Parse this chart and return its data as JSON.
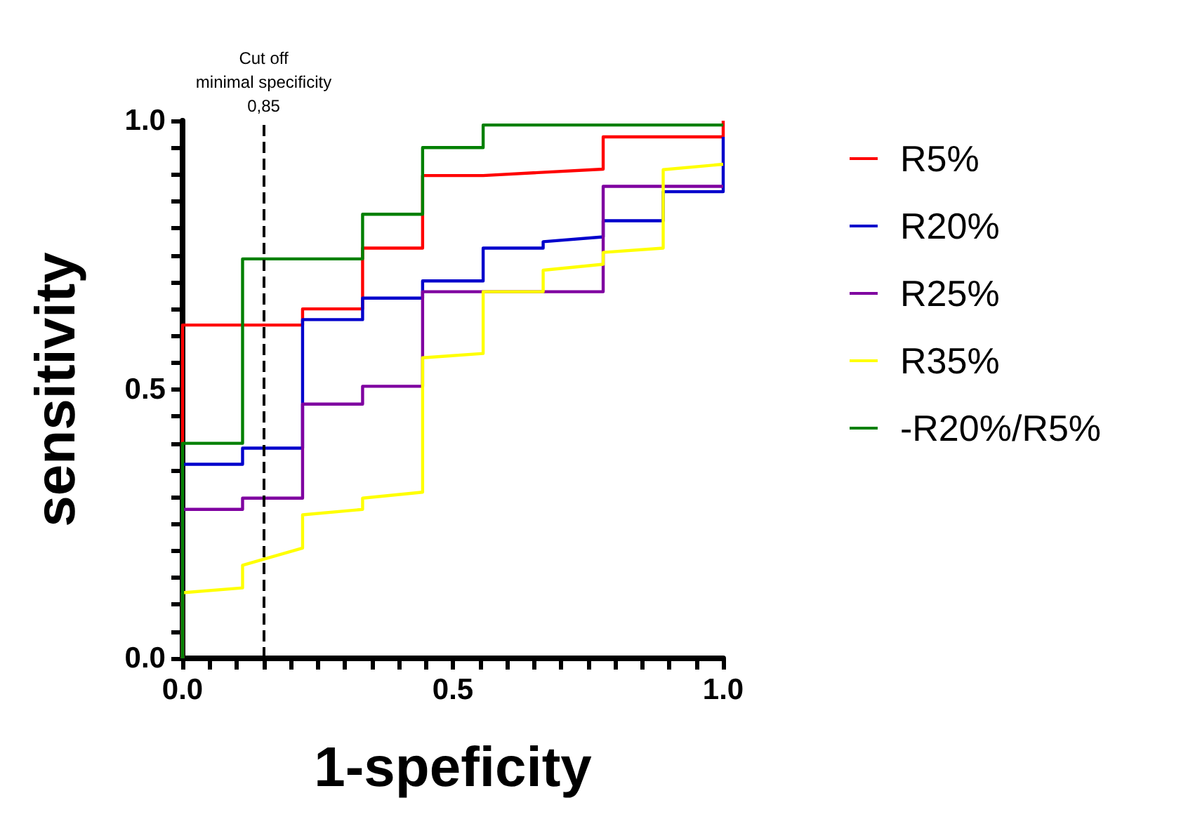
{
  "chart_data": {
    "type": "line",
    "xlabel": "1-speficity",
    "ylabel": "sensitivity",
    "xlim": [
      0,
      1
    ],
    "ylim": [
      0,
      1
    ],
    "xticks": [
      {
        "value": 0,
        "label": "0.0"
      },
      {
        "value": 0.05,
        "label": null
      },
      {
        "value": 0.1,
        "label": null
      },
      {
        "value": 0.15,
        "label": null
      },
      {
        "value": 0.2,
        "label": null
      },
      {
        "value": 0.25,
        "label": null
      },
      {
        "value": 0.3,
        "label": null
      },
      {
        "value": 0.35,
        "label": null
      },
      {
        "value": 0.4,
        "label": null
      },
      {
        "value": 0.45,
        "label": null
      },
      {
        "value": 0.5,
        "label": "0.5"
      },
      {
        "value": 0.55,
        "label": null
      },
      {
        "value": 0.6,
        "label": null
      },
      {
        "value": 0.65,
        "label": null
      },
      {
        "value": 0.7,
        "label": null
      },
      {
        "value": 0.75,
        "label": null
      },
      {
        "value": 0.8,
        "label": null
      },
      {
        "value": 0.85,
        "label": null
      },
      {
        "value": 0.9,
        "label": null
      },
      {
        "value": 0.95,
        "label": null
      },
      {
        "value": 1,
        "label": "1.0"
      }
    ],
    "yticks": [
      {
        "value": 0,
        "label": "0.0"
      },
      {
        "value": 0.05,
        "label": null
      },
      {
        "value": 0.1,
        "label": null
      },
      {
        "value": 0.15,
        "label": null
      },
      {
        "value": 0.2,
        "label": null
      },
      {
        "value": 0.25,
        "label": null
      },
      {
        "value": 0.3,
        "label": null
      },
      {
        "value": 0.35,
        "label": null
      },
      {
        "value": 0.4,
        "label": null
      },
      {
        "value": 0.45,
        "label": null
      },
      {
        "value": 0.5,
        "label": "0.5"
      },
      {
        "value": 0.55,
        "label": null
      },
      {
        "value": 0.6,
        "label": null
      },
      {
        "value": 0.65,
        "label": null
      },
      {
        "value": 0.7,
        "label": null
      },
      {
        "value": 0.75,
        "label": null
      },
      {
        "value": 0.8,
        "label": null
      },
      {
        "value": 0.85,
        "label": null
      },
      {
        "value": 0.9,
        "label": null
      },
      {
        "value": 0.95,
        "label": null
      },
      {
        "value": 1,
        "label": "1.0"
      }
    ],
    "grid": false,
    "legend": "right",
    "marker": "none",
    "line_style": "solid",
    "ref_lines": [
      {
        "axis": "x",
        "value": 0.15,
        "label": "Cut off\nminimal specificity\n0,85",
        "color": "#000000",
        "line_style": "dashed"
      }
    ],
    "series": [
      {
        "name": "R5%",
        "color": "#ff0000",
        "x": [
          0,
          0,
          0.222,
          0.222,
          0.333,
          0.333,
          0.444,
          0.444,
          0.556,
          0.778,
          0.778,
          1,
          1
        ],
        "values": [
          0,
          0.62,
          0.62,
          0.65,
          0.65,
          0.763,
          0.763,
          0.898,
          0.898,
          0.91,
          0.97,
          0.97,
          1
        ]
      },
      {
        "name": "R20%",
        "color": "#0000cc",
        "x": [
          0,
          0,
          0.111,
          0.111,
          0.222,
          0.222,
          0.333,
          0.333,
          0.444,
          0.444,
          0.556,
          0.556,
          0.667,
          0.667,
          0.778,
          0.778,
          0.889,
          0.889,
          1,
          1
        ],
        "values": [
          0,
          0.361,
          0.361,
          0.391,
          0.391,
          0.63,
          0.63,
          0.67,
          0.67,
          0.702,
          0.702,
          0.763,
          0.763,
          0.775,
          0.784,
          0.814,
          0.814,
          0.868,
          0.868,
          0.97
        ]
      },
      {
        "name": "R25%",
        "color": "#7f00a0",
        "x": [
          0,
          0,
          0.111,
          0.111,
          0.222,
          0.222,
          0.333,
          0.333,
          0.444,
          0.444,
          0.778,
          0.778,
          1
        ],
        "values": [
          0,
          0.277,
          0.277,
          0.298,
          0.298,
          0.473,
          0.473,
          0.506,
          0.506,
          0.682,
          0.682,
          0.878,
          0.878
        ]
      },
      {
        "name": "R35%",
        "color": "#ffff00",
        "x": [
          0,
          0,
          0.111,
          0.111,
          0.222,
          0.222,
          0.333,
          0.333,
          0.444,
          0.444,
          0.556,
          0.556,
          0.667,
          0.667,
          0.778,
          0.778,
          0.889,
          0.889,
          1
        ],
        "values": [
          0,
          0.122,
          0.131,
          0.173,
          0.205,
          0.267,
          0.277,
          0.298,
          0.309,
          0.559,
          0.567,
          0.682,
          0.682,
          0.722,
          0.733,
          0.755,
          0.763,
          0.909,
          0.919
        ]
      },
      {
        "name": "-R20%/R5%",
        "color": "#008000",
        "x": [
          0,
          0,
          0.111,
          0.111,
          0.333,
          0.333,
          0.444,
          0.444,
          0.556,
          0.556,
          1
        ],
        "values": [
          0,
          0.4,
          0.4,
          0.743,
          0.743,
          0.826,
          0.826,
          0.95,
          0.95,
          0.992,
          0.992
        ]
      }
    ]
  }
}
